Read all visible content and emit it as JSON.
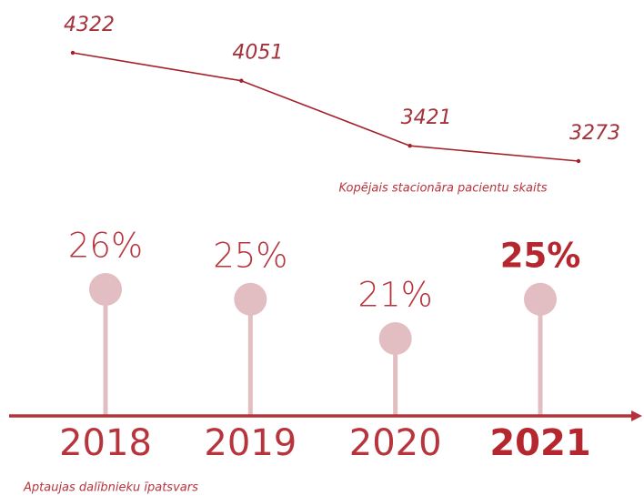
{
  "chart_data": [
    {
      "type": "line",
      "title": "Kopējais stacionāra pacientu skaits",
      "categories": [
        "2018",
        "2019",
        "2020",
        "2021"
      ],
      "values": [
        4322,
        4051,
        3421,
        3273
      ],
      "color": "#a3202b"
    },
    {
      "type": "lollipop",
      "title": "Aptaujas dalībnieku īpatsvars",
      "categories": [
        "2018",
        "2019",
        "2020",
        "2021"
      ],
      "values": [
        26,
        25,
        21,
        25
      ],
      "value_labels": [
        "26%",
        "25%",
        "21%",
        "25%"
      ],
      "color": "#e2bdc1",
      "axis_color": "#b5323a",
      "highlight_index": 3
    }
  ]
}
